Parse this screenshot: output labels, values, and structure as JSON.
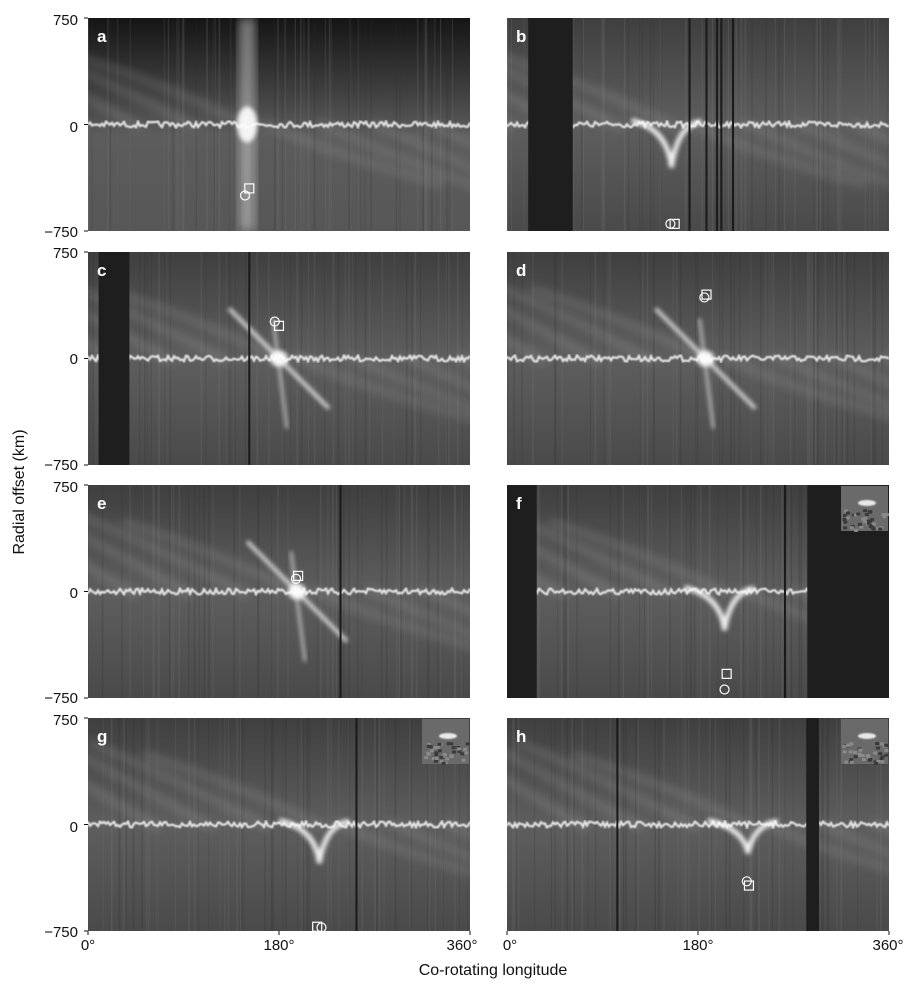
{
  "chart_data": {
    "type": "heatmap",
    "ylabel": "Radial offset (km)",
    "xlabel": "Co-rotating longitude",
    "xlim": [
      0,
      360
    ],
    "ylim": [
      -750,
      750
    ],
    "x_ticks": [
      "0°",
      "180°",
      "360°"
    ],
    "y_ticks": [
      "750",
      "0",
      "−750"
    ],
    "colors": {
      "background": "#555555",
      "bright": "#ffffff",
      "gap": "#1e1e1e"
    },
    "panels": [
      {
        "letter": "a",
        "gaps": [],
        "lines": [],
        "markers": {
          "square": [
            152,
            -450
          ],
          "circle": [
            148,
            -500
          ]
        },
        "features": [
          {
            "lon": 150,
            "r": 0,
            "strength": 1.0,
            "kind": "vertical"
          }
        ],
        "inset": false
      },
      {
        "letter": "b",
        "gaps": [
          [
            20,
            62
          ]
        ],
        "lines": [
          172,
          188,
          198,
          202,
          213
        ],
        "markers": {
          "square": [
            158,
            -700
          ],
          "circle": [
            154,
            -700
          ]
        },
        "features": [
          {
            "lon": 155,
            "r": -50,
            "strength": 1.0,
            "kind": "droop"
          }
        ],
        "inset": false
      },
      {
        "letter": "c",
        "gaps": [
          [
            10,
            39
          ]
        ],
        "lines": [
          152
        ],
        "markers": {
          "square": [
            180,
            230
          ],
          "circle": [
            176,
            260
          ]
        },
        "features": [
          {
            "lon": 180,
            "r": 0,
            "strength": 0.9,
            "kind": "cross"
          }
        ],
        "inset": false
      },
      {
        "letter": "d",
        "gaps": [],
        "lines": [],
        "markers": {
          "square": [
            188,
            450
          ],
          "circle": [
            186,
            430
          ]
        },
        "features": [
          {
            "lon": 187,
            "r": 0,
            "strength": 0.6,
            "kind": "cross"
          }
        ],
        "inset": false
      },
      {
        "letter": "e",
        "gaps": [],
        "lines": [
          238
        ],
        "markers": {
          "square": [
            198,
            110
          ],
          "circle": [
            196,
            90
          ]
        },
        "features": [
          {
            "lon": 197,
            "r": 0,
            "strength": 0.8,
            "kind": "cross"
          }
        ],
        "inset": false
      },
      {
        "letter": "f",
        "gaps": [
          [
            0,
            28
          ],
          [
            283,
            360
          ]
        ],
        "lines": [
          262
        ],
        "markers": {
          "square": [
            207,
            -580
          ],
          "circle": [
            205,
            -690
          ]
        },
        "features": [
          {
            "lon": 205,
            "r": -80,
            "strength": 0.8,
            "kind": "droop"
          }
        ],
        "inset": true
      },
      {
        "letter": "g",
        "gaps": [],
        "lines": [
          253
        ],
        "markers": {
          "square": [
            216,
            -720
          ],
          "circle": [
            220,
            -725
          ]
        },
        "features": [
          {
            "lon": 218,
            "r": -80,
            "strength": 0.8,
            "kind": "droop"
          }
        ],
        "inset": true
      },
      {
        "letter": "h",
        "gaps": [
          [
            282,
            294
          ]
        ],
        "lines": [
          104
        ],
        "markers": {
          "square": [
            228,
            -430
          ],
          "circle": [
            226,
            -400
          ]
        },
        "features": [
          {
            "lon": 227,
            "r": -150,
            "strength": 0.6,
            "kind": "droop"
          }
        ],
        "inset": true
      }
    ]
  }
}
